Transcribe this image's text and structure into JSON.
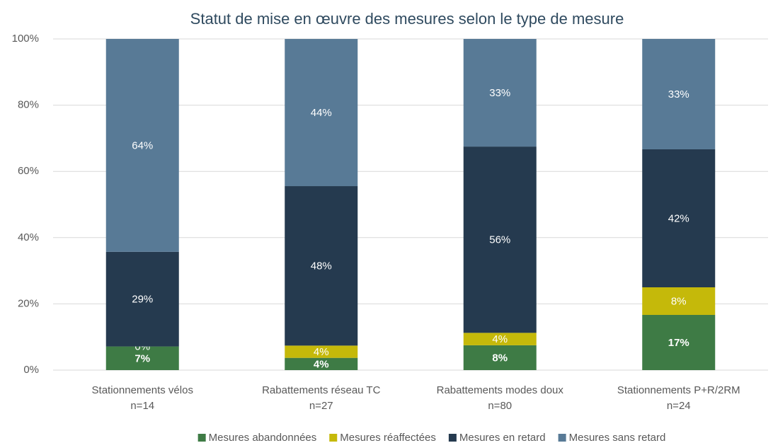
{
  "chart_data": {
    "type": "stacked_bar",
    "title": "Statut de mise en œuvre des mesures selon le type de mesure",
    "categories": [
      "Stationnements vélos",
      "Rabattements réseau TC",
      "Rabattements modes doux",
      "Stationnements P+R/2RM"
    ],
    "category_notes": [
      "n=14",
      "n=27",
      "n=80",
      "n=24"
    ],
    "series": [
      {
        "name": "Mesures abandonnées",
        "color": "#3e7b45",
        "bold": true,
        "values": [
          7.14,
          3.7,
          7.5,
          16.67
        ],
        "value_labels": [
          "7%",
          "4%",
          "8%",
          "17%"
        ]
      },
      {
        "name": "Mesures réaffectées",
        "color": "#c5b90a",
        "values": [
          0,
          3.7,
          3.75,
          8.33
        ],
        "value_labels": [
          "0%",
          "4%",
          "4%",
          "8%"
        ]
      },
      {
        "name": "Mesures en retard",
        "color": "#253a4f",
        "values": [
          28.57,
          48.15,
          56.25,
          41.67
        ],
        "value_labels": [
          "29%",
          "48%",
          "56%",
          "42%"
        ]
      },
      {
        "name": "Mesures sans retard",
        "color": "#587a96",
        "values": [
          64.29,
          44.44,
          32.5,
          33.33
        ],
        "value_labels": [
          "64%",
          "44%",
          "33%",
          "33%"
        ]
      }
    ],
    "ylim": [
      0,
      100
    ],
    "yticks": [
      {
        "value": 0,
        "label": "0%"
      },
      {
        "value": 20,
        "label": "20%"
      },
      {
        "value": 40,
        "label": "40%"
      },
      {
        "value": 60,
        "label": "60%"
      },
      {
        "value": 80,
        "label": "80%"
      },
      {
        "value": 100,
        "label": "100%"
      }
    ],
    "grid": true,
    "legend": "bottom"
  }
}
